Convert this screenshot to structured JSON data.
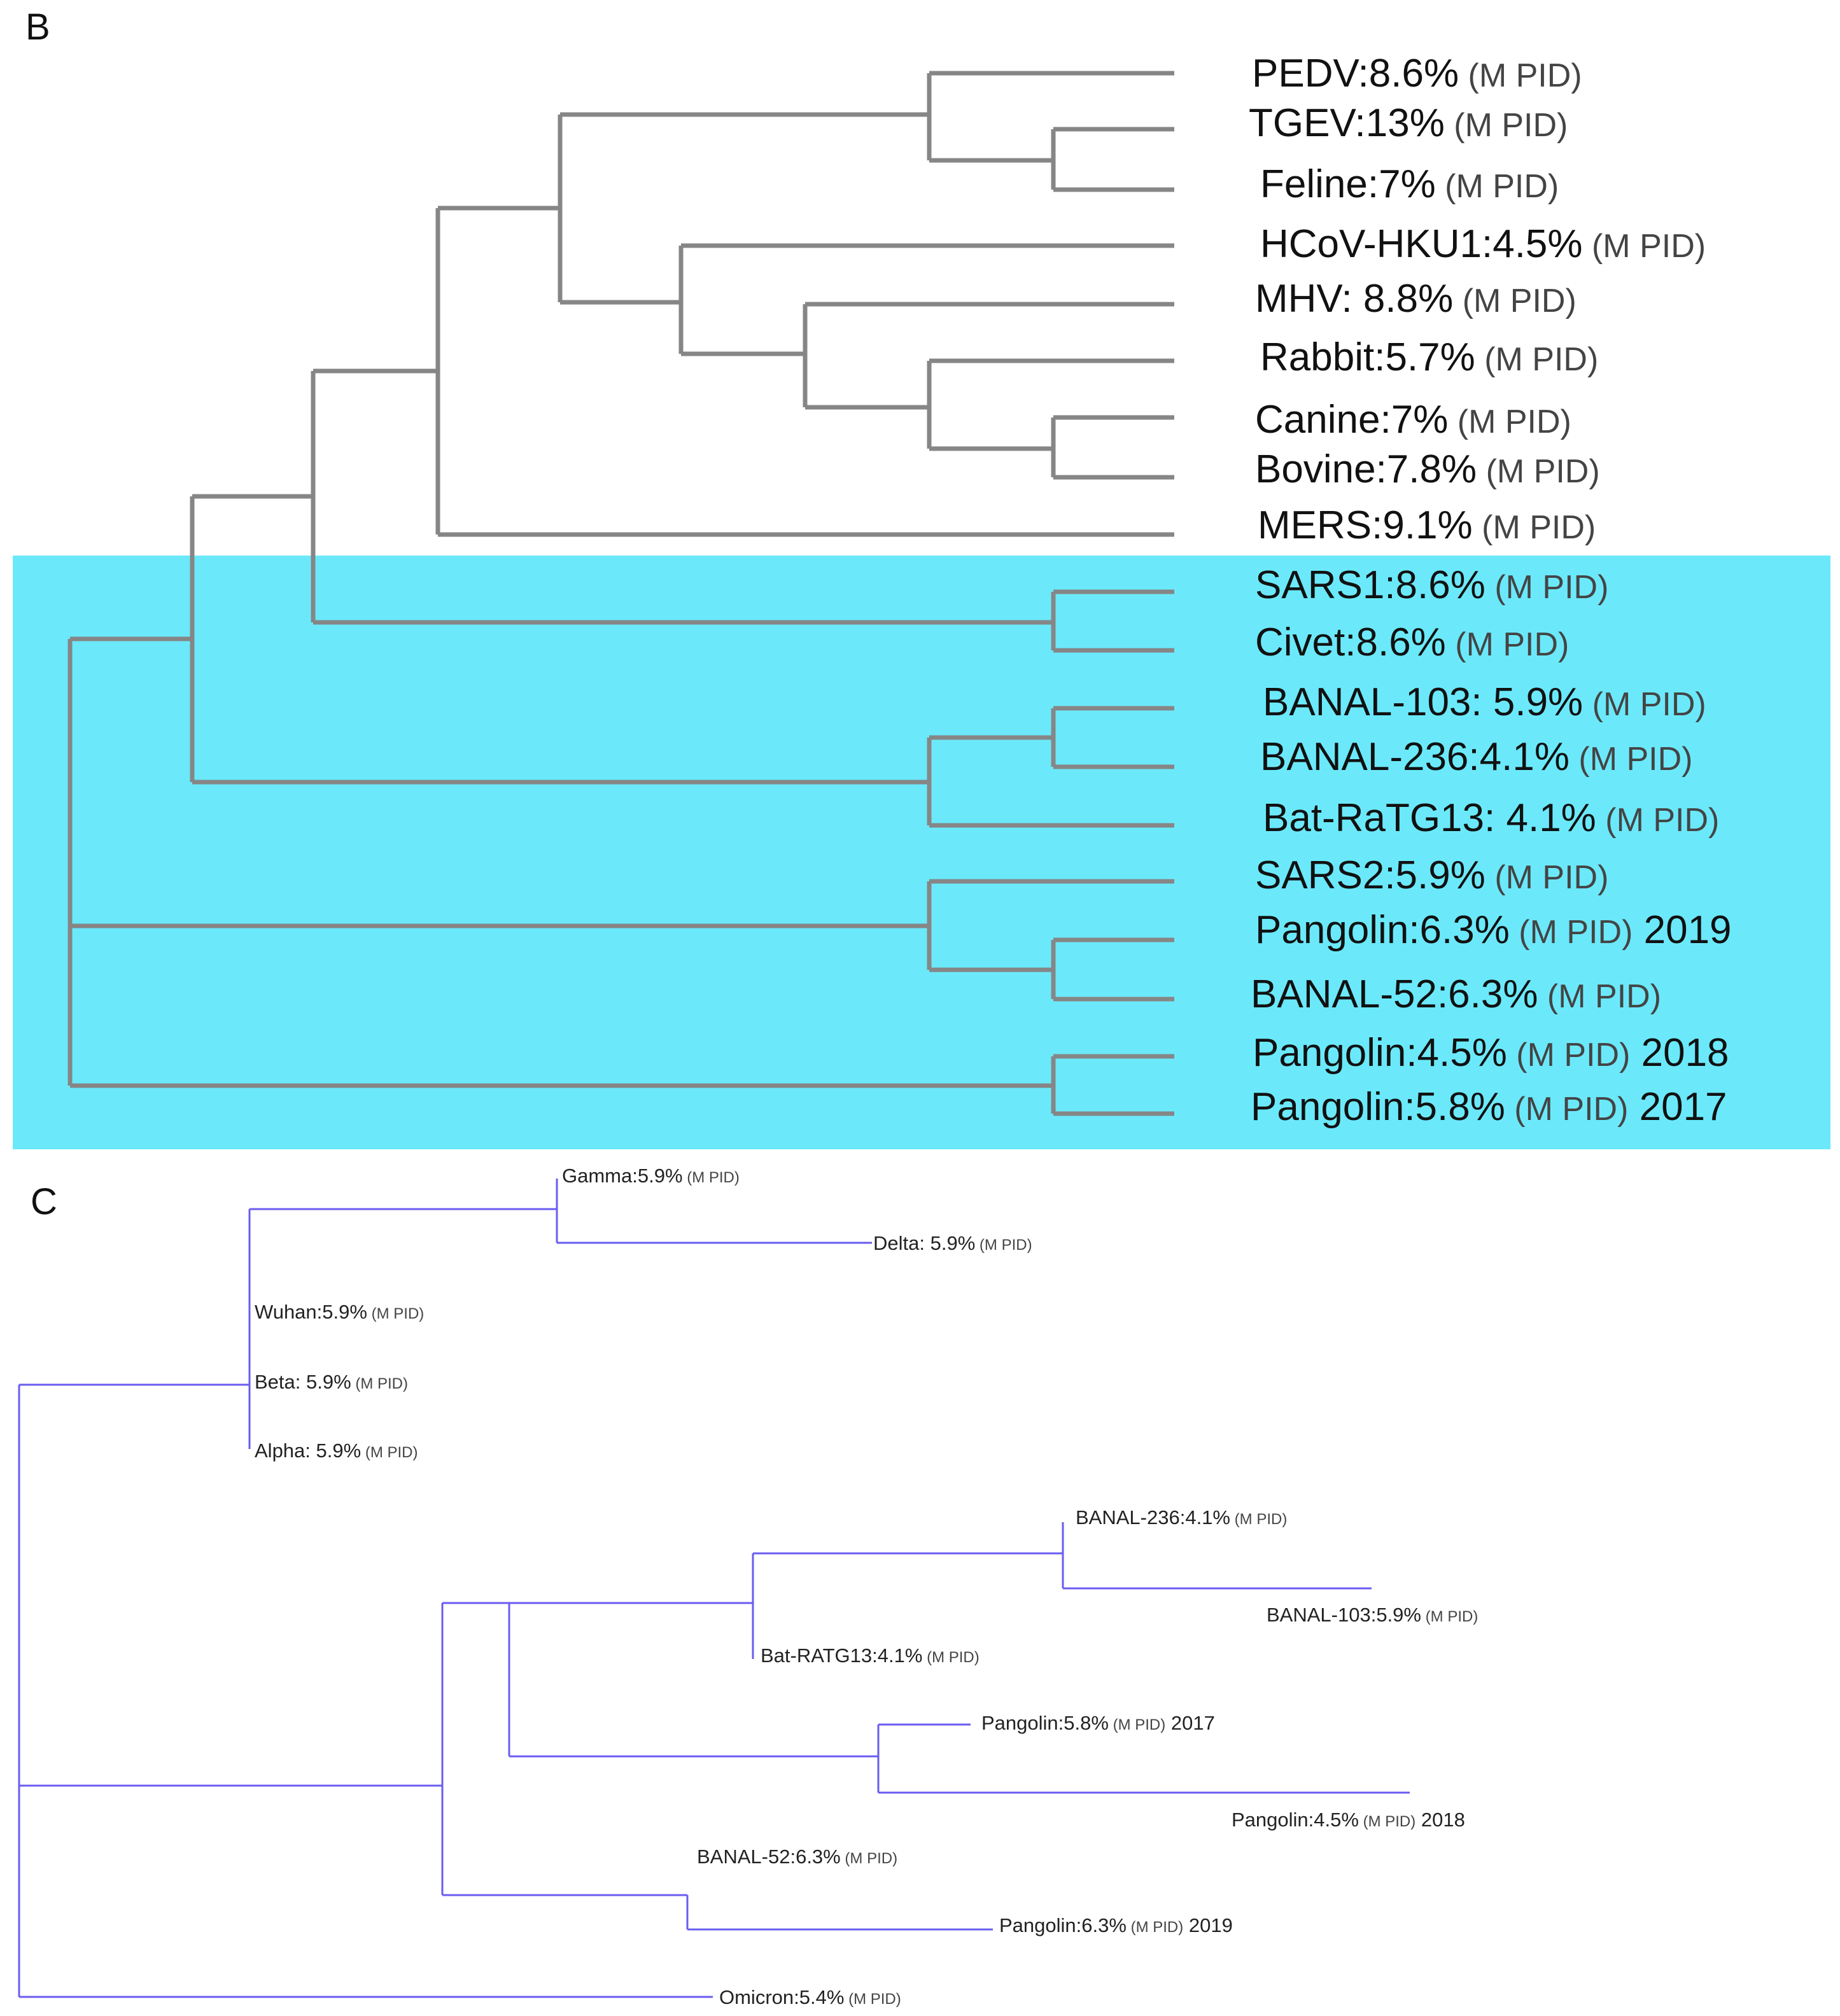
{
  "colors": {
    "highlight": "#6be9fb",
    "tree_b_branch": "#868686",
    "tree_c_branch": "#6a5cf0",
    "text": "#111111"
  },
  "panels": {
    "b": {
      "letter": "B",
      "leaves": [
        {
          "name": "PEDV",
          "pct": ":8.6%",
          "mpid": "(M PID)",
          "year": ""
        },
        {
          "name": "TGEV",
          "pct": ":13%",
          "mpid": "(M PID)",
          "year": ""
        },
        {
          "name": "Feline",
          "pct": ":7%",
          "mpid": "(M PID)",
          "year": ""
        },
        {
          "name": "HCoV-HKU1",
          "pct": ":4.5%",
          "mpid": "(M PID)",
          "year": ""
        },
        {
          "name": "MHV",
          "pct": ": 8.8%",
          "mpid": "(M PID)",
          "year": ""
        },
        {
          "name": "Rabbit",
          "pct": ":5.7%",
          "mpid": "(M PID)",
          "year": ""
        },
        {
          "name": "Canine",
          "pct": ":7%",
          "mpid": "(M PID)",
          "year": ""
        },
        {
          "name": "Bovine",
          "pct": ":7.8%",
          "mpid": "(M PID)",
          "year": ""
        },
        {
          "name": "MERS",
          "pct": ":9.1%",
          "mpid": "(M PID)",
          "year": ""
        },
        {
          "name": "SARS1",
          "pct": ":8.6%",
          "mpid": "(M PID)",
          "year": ""
        },
        {
          "name": "Civet",
          "pct": ":8.6%",
          "mpid": "(M PID)",
          "year": ""
        },
        {
          "name": "BANAL-103",
          "pct": ": 5.9%",
          "mpid": "(M PID)",
          "year": ""
        },
        {
          "name": "BANAL-236",
          "pct": ":4.1%",
          "mpid": "(M PID)",
          "year": ""
        },
        {
          "name": "Bat-RaTG13",
          "pct": ": 4.1%",
          "mpid": "(M PID)",
          "year": ""
        },
        {
          "name": "SARS2",
          "pct": ":5.9%",
          "mpid": "(M PID)",
          "year": ""
        },
        {
          "name": "Pangolin",
          "pct": ":6.3%",
          "mpid": "(M PID)",
          "year": "2019"
        },
        {
          "name": "BANAL-52",
          "pct": ":6.3%",
          "mpid": "(M PID)",
          "year": ""
        },
        {
          "name": "Pangolin",
          "pct": ":4.5%",
          "mpid": "(M PID)",
          "year": "2018"
        },
        {
          "name": "Pangolin",
          "pct": ":5.8%",
          "mpid": "(M PID)",
          "year": "2017"
        }
      ]
    },
    "c": {
      "letter": "C",
      "leaves": [
        {
          "name": "Gamma",
          "pct": ":5.9%",
          "mpid": "(M PID)",
          "year": ""
        },
        {
          "name": "Delta",
          "pct": ": 5.9%",
          "mpid": "(M PID)",
          "year": ""
        },
        {
          "name": "Wuhan",
          "pct": ":5.9%",
          "mpid": "(M PID)",
          "year": ""
        },
        {
          "name": "Beta",
          "pct": ": 5.9%",
          "mpid": "(M PID)",
          "year": ""
        },
        {
          "name": "Alpha",
          "pct": ": 5.9%",
          "mpid": "(M PID)",
          "year": ""
        },
        {
          "name": "BANAL-236",
          "pct": ":4.1%",
          "mpid": "(M PID)",
          "year": ""
        },
        {
          "name": "BANAL-103",
          "pct": ":5.9%",
          "mpid": "(M PID)",
          "year": ""
        },
        {
          "name": "Bat-RATG13",
          "pct": ":4.1%",
          "mpid": "(M PID)",
          "year": ""
        },
        {
          "name": "Pangolin",
          "pct": ":5.8%",
          "mpid": "(M PID)",
          "year": "2017"
        },
        {
          "name": "Pangolin",
          "pct": ":4.5%",
          "mpid": "(M PID)",
          "year": "2018"
        },
        {
          "name": "BANAL-52",
          "pct": ":6.3%",
          "mpid": "(M PID)",
          "year": ""
        },
        {
          "name": "Pangolin",
          "pct": ":6.3%",
          "mpid": "(M PID)",
          "year": "2019"
        },
        {
          "name": "Omicron",
          "pct": ":5.4%",
          "mpid": "(M PID)",
          "year": ""
        }
      ]
    }
  }
}
